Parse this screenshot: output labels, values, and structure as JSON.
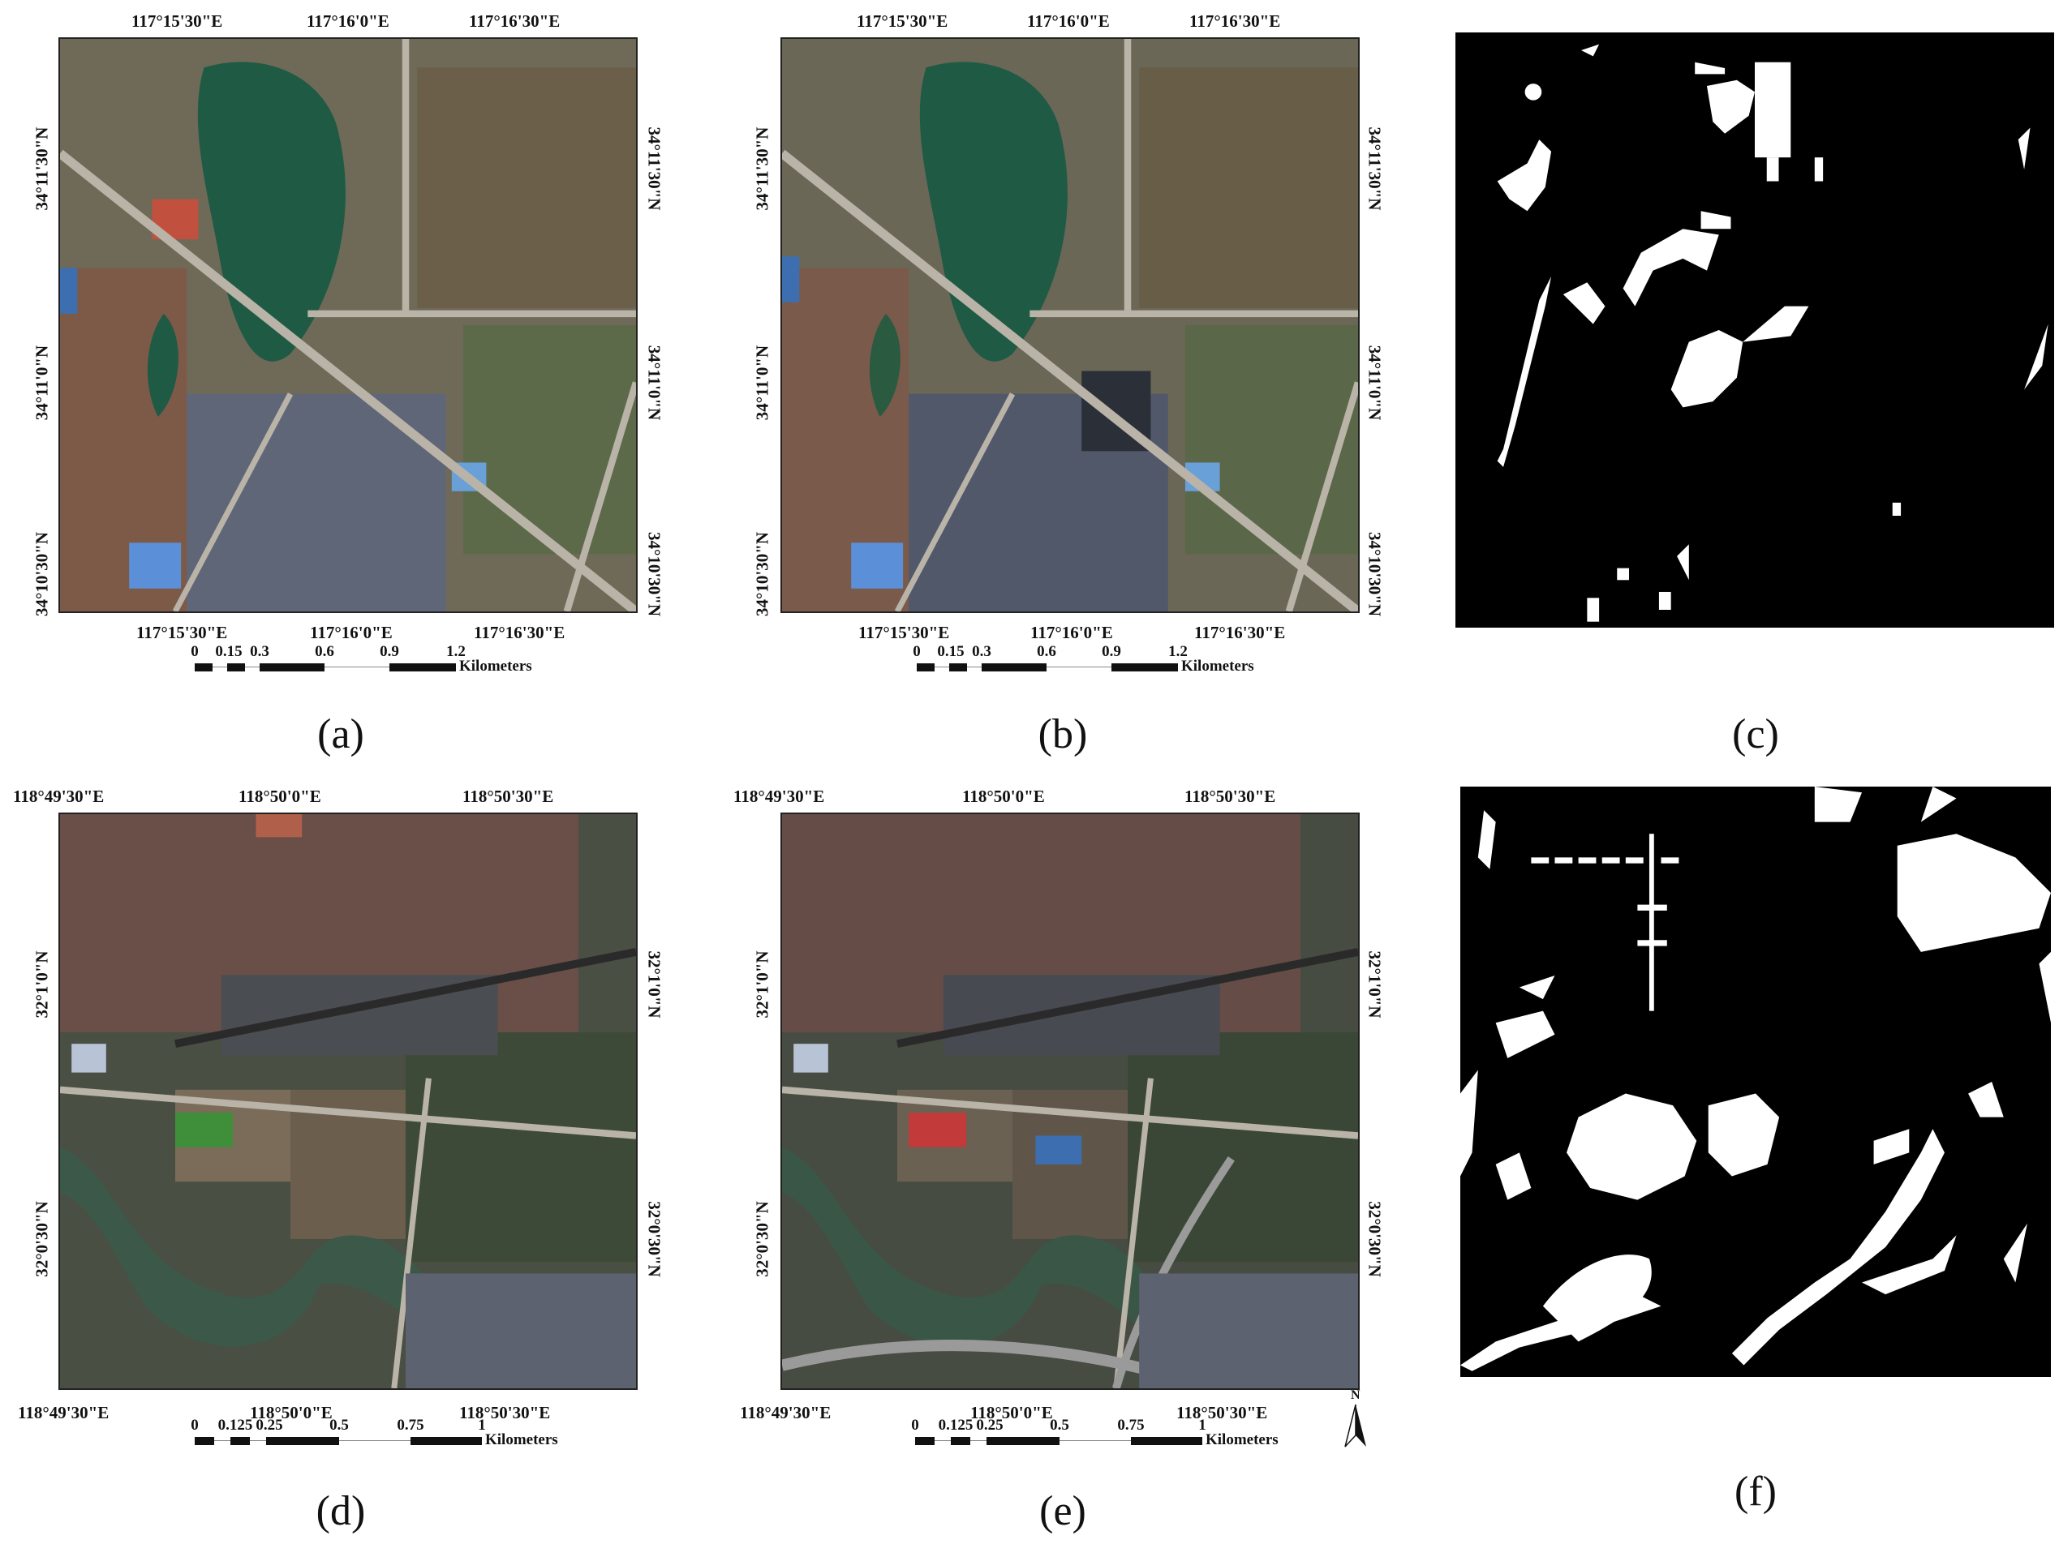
{
  "figure": {
    "panels": [
      {
        "id": "a",
        "caption": "(a)",
        "kind": "satellite-image-2017",
        "top_ticks": [
          "117°15'30\"E",
          "117°16'0\"E",
          "117°16'30\"E"
        ],
        "bottom_ticks": [
          "117°15'30\"E",
          "117°16'0\"E",
          "117°16'30\"E"
        ],
        "left_ticks": [
          "34°11'30\"N",
          "34°11'0\"N",
          "34°10'30\"N"
        ],
        "right_ticks": [
          "34°11'30\"N",
          "34°11'0\"N",
          "34°10'30\"N"
        ],
        "scale_labels": [
          "0",
          "0.15",
          "0.3",
          "0.6",
          "0.9",
          "1.2"
        ],
        "scale_unit": "Kilometers"
      },
      {
        "id": "b",
        "caption": "(b)",
        "kind": "satellite-image-2018",
        "top_ticks": [
          "117°15'30\"E",
          "117°16'0\"E",
          "117°16'30\"E"
        ],
        "bottom_ticks": [
          "117°15'30\"E",
          "117°16'0\"E",
          "117°16'30\"E"
        ],
        "left_ticks": [
          "34°11'30\"N",
          "34°11'0\"N",
          "34°10'30\"N"
        ],
        "right_ticks": [
          "34°11'30\"N",
          "34°11'0\"N",
          "34°10'30\"N"
        ],
        "scale_labels": [
          "0",
          "0.15",
          "0.3",
          "0.6",
          "0.9",
          "1.2"
        ],
        "scale_unit": "Kilometers"
      },
      {
        "id": "c",
        "caption": "(c)",
        "kind": "change-map-binary"
      },
      {
        "id": "d",
        "caption": "(d)",
        "kind": "satellite-image-2017",
        "top_ticks": [
          "118°49'30\"E",
          "118°50'0\"E",
          "118°50'30\"E"
        ],
        "bottom_ticks": [
          "118°49'30\"E",
          "118°50'0\"E",
          "118°50'30\"E"
        ],
        "left_ticks": [
          "32°1'0\"N",
          "32°0'30\"N"
        ],
        "right_ticks": [
          "32°1'0\"N",
          "32°0'30\"N"
        ],
        "scale_labels": [
          "0",
          "0.125",
          "0.25",
          "0.5",
          "0.75",
          "1"
        ],
        "scale_unit": "Kilometers"
      },
      {
        "id": "e",
        "caption": "(e)",
        "kind": "satellite-image-2018",
        "top_ticks": [
          "118°49'30\"E",
          "118°50'0\"E",
          "118°50'30\"E"
        ],
        "bottom_ticks": [
          "118°49'30\"E",
          "118°50'0\"E",
          "118°50'30\"E"
        ],
        "left_ticks": [
          "32°1'0\"N",
          "32°0'30\"N"
        ],
        "right_ticks": [
          "32°1'0\"N",
          "32°0'30\"N"
        ],
        "scale_labels": [
          "0",
          "0.125",
          "0.25",
          "0.5",
          "0.75",
          "1"
        ],
        "scale_unit": "Kilometers",
        "north_arrow": "N"
      },
      {
        "id": "f",
        "caption": "(f)",
        "kind": "change-map-binary"
      }
    ]
  },
  "colors": {
    "water": "#1f5a45",
    "urban": "#8a7f70",
    "road": "#b9b3a8",
    "roof_red": "#a0433a",
    "roof_blue": "#3d6fb0",
    "vegetation": "#4c5a32",
    "binary_fg": "#ffffff",
    "binary_bg": "#000000"
  }
}
